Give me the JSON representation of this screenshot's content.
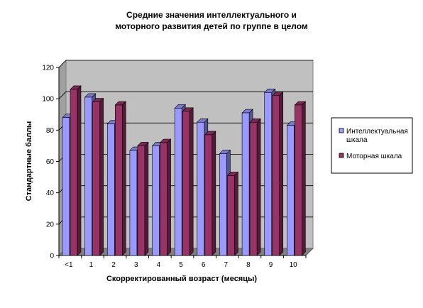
{
  "chart_data": {
    "type": "bar",
    "title_lines": [
      "Средние значения интеллектуального и",
      "моторного развития детей по группе в целом"
    ],
    "xlabel": "Скорректированный возраст (месяцы)",
    "ylabel": "Стандартные баллы",
    "categories": [
      "<1",
      "1",
      "2",
      "3",
      "4",
      "5",
      "6",
      "7",
      "8",
      "9",
      "10"
    ],
    "ylim": [
      0,
      120
    ],
    "yticks": [
      0,
      20,
      40,
      60,
      80,
      100,
      120
    ],
    "grid": true,
    "legend_position": "right",
    "series": [
      {
        "name": "Интеллектуальная шкала",
        "legend_lines": [
          "Интеллектуальная",
          "шкала"
        ],
        "color": "#9999FF",
        "values": [
          88,
          101,
          84,
          67,
          70,
          94,
          85,
          65,
          91,
          104,
          83
        ]
      },
      {
        "name": "Моторная шкала",
        "legend_lines": [
          "Моторная шкала"
        ],
        "color": "#993366",
        "values": [
          106,
          98,
          96,
          70,
          72,
          92,
          77,
          51,
          85,
          102,
          96
        ]
      }
    ],
    "plot_background": "#C0C0C0"
  }
}
